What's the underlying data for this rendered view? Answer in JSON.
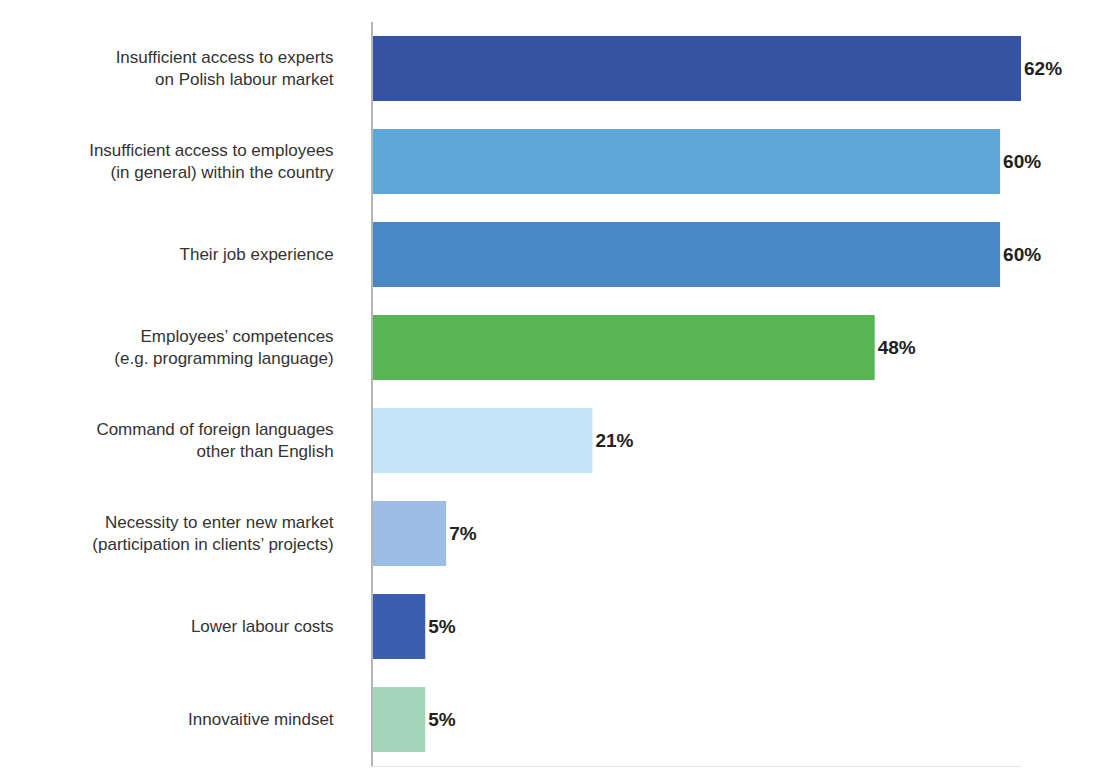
{
  "chart_data": {
    "type": "bar",
    "orientation": "horizontal",
    "categories": [
      "Insufficient access to experts on Polish labour market",
      "Insufficient access to employees (in general) within the country",
      "Their job experience",
      "Employees’ competences (e.g. programming language)",
      "Command of foreign languages other than English",
      "Necessity to enter new market (participation in clients’ projects)",
      "Lower labour costs",
      "Innovaitive mindset"
    ],
    "values": [
      62,
      60,
      60,
      48,
      21,
      7,
      5,
      5
    ],
    "value_labels": [
      "62%",
      "60%",
      "60%",
      "48%",
      "21%",
      "7%",
      "5%",
      "5%"
    ],
    "colors": [
      "#3553a0",
      "#5ea6d8",
      "#4a87c6",
      "#57b553",
      "#c3e5f7",
      "#9bbde6",
      "#3b5fb0",
      "#a3d6b8"
    ],
    "xlim": [
      0,
      62
    ],
    "data_labels": true,
    "tick_labels": "y",
    "grid": false
  }
}
